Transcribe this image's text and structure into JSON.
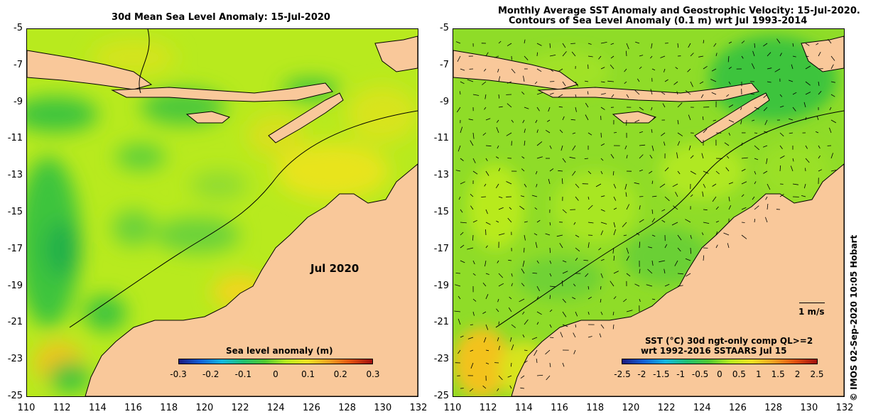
{
  "left_panel": {
    "title": "30d Mean Sea Level Anomaly: 15-Jul-2020",
    "annotation": "Jul 2020",
    "colorbar": {
      "label": "Sea level anomaly (m)",
      "ticks": [
        "-0.3",
        "-0.2",
        "-0.1",
        "0",
        "0.1",
        "0.2",
        "0.3"
      ]
    }
  },
  "right_panel": {
    "title_line1": "Monthly Average SST Anomaly  and Geostrophic Velocity: 15-Jul-2020.",
    "title_line2": "Contours of Sea Level Anomaly (0.1 m) wrt Jul 1993-2014",
    "velocity_scale": "1 m/s",
    "colorbar": {
      "label_line1": "SST (°C) 30d ngt-only comp QL>=2",
      "label_line2": "wrt 1992-2016 SSTAARS Jul 15",
      "ticks": [
        "-2.5",
        "-2",
        "-1.5",
        "-1",
        "-0.5",
        "0",
        "0.5",
        "1",
        "1.5",
        "2",
        "2.5"
      ]
    }
  },
  "axes": {
    "x_ticks": [
      "110",
      "112",
      "114",
      "116",
      "118",
      "120",
      "122",
      "124",
      "126",
      "128",
      "130",
      "132"
    ],
    "y_ticks": [
      "-5",
      "-7",
      "-9",
      "-11",
      "-13",
      "-15",
      "-17",
      "-19",
      "-21",
      "-23",
      "-25"
    ],
    "lon_range": [
      110,
      132
    ],
    "lat_range": [
      -25,
      -5
    ]
  },
  "credit": "© IMOS 02-Sep-2020 10:05 Hobart",
  "colors": {
    "land": "#f9c89a",
    "ocean_base": "#b8ea1e",
    "sst_base": "#8fdc28"
  }
}
